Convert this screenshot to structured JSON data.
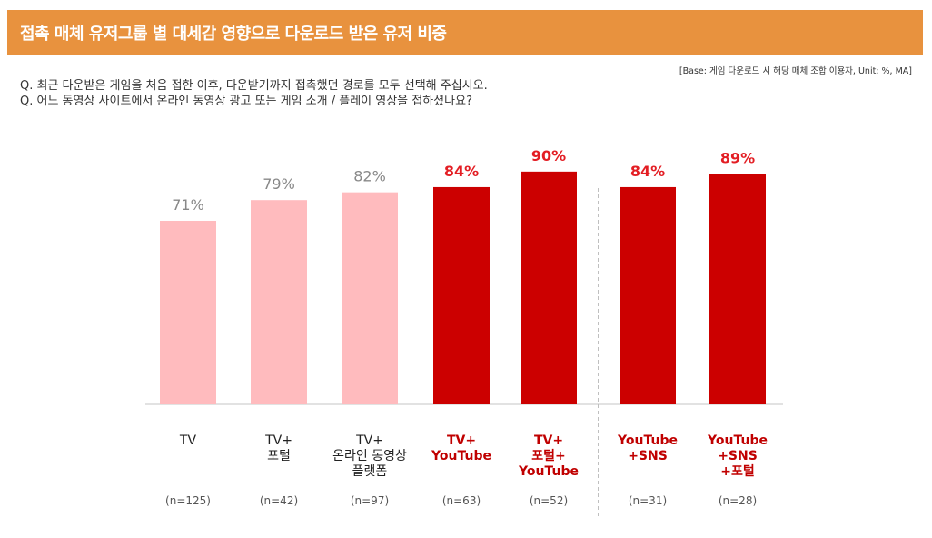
{
  "header": {
    "title": "접촉 매체 유저그룹 별 대세감 영향으로 다운로드 받은 유저 비중"
  },
  "base_note": "[Base: 게임 다운로드 시 해당 매체 조합 이용자, Unit: %, MA]",
  "questions": [
    "Q. 최근 다운받은 게임을 처음 접한 이후, 다운받기까지 접촉했던 경로를 모두 선택해 주십시오.",
    "Q. 어느 동영상 사이트에서 온라인 동영상 광고 또는 게임 소개 / 플레이 영상을 접하셨나요?"
  ],
  "colors": {
    "header": "#E8923E",
    "light_bar": "#FFBBBE",
    "dark_bar": "#CC0000",
    "light_text": "#888888",
    "dark_text": "#E31E24"
  },
  "chart_data": {
    "type": "bar",
    "categories": [
      [
        "TV"
      ],
      [
        "TV+",
        "포털"
      ],
      [
        "TV+",
        "온라인 동영상",
        "플랫폼"
      ],
      [
        "TV+",
        "YouTube"
      ],
      [
        "TV+",
        "포털+",
        "YouTube"
      ],
      [
        "YouTube",
        "+SNS"
      ],
      [
        "YouTube",
        "+SNS",
        "+포털"
      ]
    ],
    "values": [
      71,
      79,
      82,
      84,
      90,
      84,
      89
    ],
    "value_labels": [
      "71%",
      "79%",
      "82%",
      "84%",
      "90%",
      "84%",
      "89%"
    ],
    "sample_sizes": [
      "(n=125)",
      "(n=42)",
      "(n=97)",
      "(n=63)",
      "(n=52)",
      "(n=31)",
      "(n=28)"
    ],
    "highlighted": [
      false,
      false,
      false,
      true,
      true,
      true,
      true
    ],
    "divider_after_index": 4,
    "ylim": [
      0,
      100
    ],
    "xlabel": "",
    "ylabel": ""
  }
}
